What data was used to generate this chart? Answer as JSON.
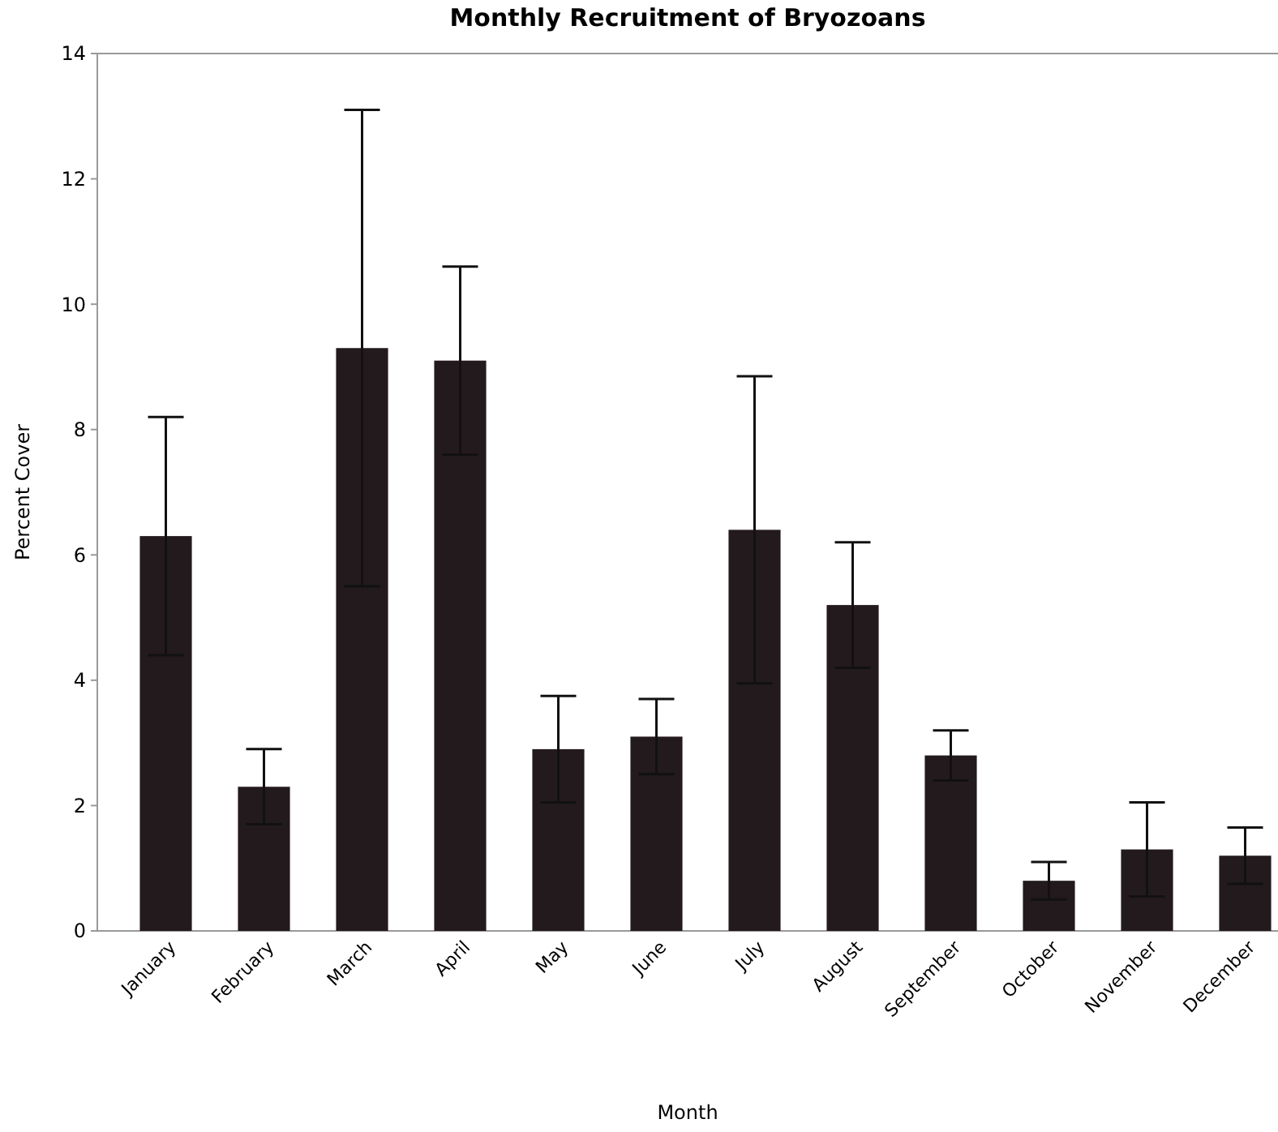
{
  "chart_data": {
    "type": "bar",
    "title": "Monthly Recruitment of Bryozoans",
    "xlabel": "Month",
    "ylabel": "Percent Cover",
    "categories": [
      "January",
      "February",
      "March",
      "April",
      "May",
      "June",
      "July",
      "August",
      "September",
      "October",
      "November",
      "December"
    ],
    "values": [
      6.3,
      2.3,
      9.3,
      9.1,
      2.9,
      3.1,
      6.4,
      5.2,
      2.8,
      0.8,
      1.3,
      1.2
    ],
    "errors": [
      1.9,
      0.6,
      3.8,
      1.5,
      0.85,
      0.6,
      2.45,
      1.0,
      0.4,
      0.3,
      0.75,
      0.45
    ],
    "color": "#231a1e",
    "ylim": [
      0,
      14
    ],
    "yticks": [
      0,
      2,
      4,
      6,
      8,
      10,
      12,
      14
    ],
    "grid": false
  }
}
